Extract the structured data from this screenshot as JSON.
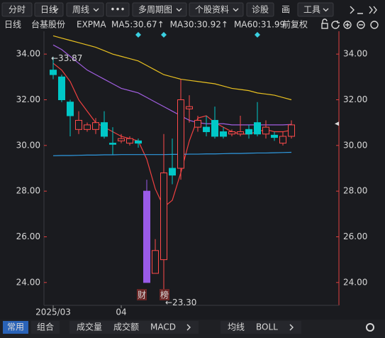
{
  "toolbar": {
    "buttons": [
      "分时",
      "日线",
      "周线",
      "•••",
      "多周期图",
      "个股资料",
      "诊股",
      "画",
      "工具"
    ]
  },
  "info_bar": {
    "period": "日线",
    "stock": "台基股份",
    "indicator": "EXPMA",
    "adjust": "前复权"
  },
  "bottom_bar": {
    "groups": [
      "常用",
      "组合"
    ],
    "indicators": [
      "成交量",
      "成交额",
      "MACD"
    ],
    "overlays": [
      "均线",
      "BOLL"
    ]
  },
  "chart_data": {
    "type": "candlestick",
    "categories": [
      "2025/03",
      null,
      null,
      null,
      null,
      null,
      null,
      null,
      "04",
      null,
      null,
      null,
      null,
      null,
      null,
      null,
      null,
      null,
      null,
      null,
      null,
      null,
      null,
      null,
      null,
      null,
      null,
      null,
      null
    ],
    "open": [
      33.3,
      33.0,
      31.9,
      30.7,
      30.7,
      30.7,
      31.0,
      30.1,
      30.2,
      30.1,
      30.2,
      28.0,
      24.4,
      25.0,
      29.0,
      29.0,
      31.6,
      30.8,
      30.8,
      31.1,
      30.6,
      30.5,
      30.5,
      30.7,
      31.0,
      30.5,
      30.45,
      30.1,
      30.4
    ],
    "high": [
      33.87,
      33.1,
      32.0,
      31.5,
      31.0,
      31.2,
      31.5,
      30.8,
      30.5,
      30.4,
      30.3,
      28.5,
      25.9,
      30.5,
      30.3,
      32.9,
      32.2,
      31.3,
      31.3,
      31.7,
      30.8,
      30.7,
      31.3,
      30.9,
      31.9,
      31.1,
      30.6,
      30.6,
      31.1
    ],
    "low": [
      32.9,
      31.9,
      30.4,
      30.5,
      30.6,
      30.5,
      30.3,
      29.6,
      30.1,
      30.0,
      29.9,
      24.0,
      24.4,
      23.3,
      28.3,
      28.5,
      31.0,
      30.6,
      30.4,
      30.3,
      30.3,
      30.4,
      30.4,
      30.3,
      30.4,
      30.3,
      30.2,
      30.0,
      30.3
    ],
    "close": [
      33.1,
      32.0,
      31.3,
      31.1,
      30.9,
      31.0,
      30.4,
      30.05,
      30.3,
      30.3,
      30.1,
      24.0,
      25.4,
      28.8,
      28.7,
      32.0,
      31.7,
      31.1,
      30.6,
      30.4,
      30.4,
      30.6,
      30.6,
      30.5,
      30.5,
      30.8,
      30.35,
      30.4,
      30.9
    ],
    "colors": [
      "#00c8c8",
      "#00c8c8",
      "#00c8c8",
      "#ff4b4b",
      "#ff4b4b",
      "#ff4b4b",
      "#00c8c8",
      "#00c8c8",
      "#ff4b4b",
      "#ff4b4b",
      "#00c8c8",
      "#9a5be8",
      "#ff4b4b",
      "#ff4b4b",
      "#00c8c8",
      "#ff4b4b",
      "#ff4b4b",
      "#ff4b4b",
      "#00c8c8",
      "#00c8c8",
      "#00c8c8",
      "#ff4b4b",
      "#ff4b4b",
      "#00c8c8",
      "#00c8c8",
      "#ff4b4b",
      "#00c8c8",
      "#ff4b4b",
      "#ff4b4b"
    ],
    "series": [
      {
        "name": "MA5:30.67↑",
        "color": "#f04040",
        "values": [
          33.6,
          33.3,
          32.8,
          32.0,
          31.5,
          31.0,
          30.8,
          30.6,
          30.4,
          30.3,
          30.2,
          29.4,
          28.1,
          27.3,
          27.6,
          28.8,
          30.2,
          31.2,
          31.3,
          31.0,
          30.8,
          30.6,
          30.5,
          30.5,
          30.6,
          30.7,
          30.6,
          30.6,
          30.67
        ]
      },
      {
        "name": "MA30:30.92↑",
        "color": "#a15ee0",
        "values": [
          34.4,
          34.2,
          33.9,
          33.6,
          33.3,
          33.1,
          32.9,
          32.7,
          32.5,
          32.4,
          32.3,
          32.1,
          31.9,
          31.7,
          31.5,
          31.3,
          31.1,
          31.0,
          30.95,
          30.95,
          30.95,
          30.9,
          30.9,
          30.9,
          30.9,
          30.9,
          30.9,
          30.9,
          30.92
        ]
      },
      {
        "name": "MA60:31.99",
        "color": "#e8c020",
        "values": [
          34.8,
          34.7,
          34.6,
          34.5,
          34.4,
          34.3,
          34.15,
          34.0,
          33.9,
          33.8,
          33.7,
          33.5,
          33.3,
          33.1,
          33.0,
          32.9,
          32.85,
          32.8,
          32.75,
          32.7,
          32.6,
          32.5,
          32.45,
          32.4,
          32.3,
          32.25,
          32.2,
          32.1,
          32.0
        ]
      },
      {
        "color": "#2f9ae0",
        "values": [
          29.55,
          29.56,
          29.56,
          29.57,
          29.58,
          29.58,
          29.59,
          29.59,
          29.6,
          29.6,
          29.6,
          29.6,
          29.6,
          29.6,
          29.61,
          29.61,
          29.62,
          29.62,
          29.63,
          29.63,
          29.64,
          29.65,
          29.65,
          29.66,
          29.67,
          29.67,
          29.68,
          29.69,
          29.7
        ]
      }
    ],
    "annotations": [
      "←33.87",
      "←23.30"
    ],
    "events": [
      "财",
      "榜"
    ],
    "ylim": [
      23.0,
      35.0
    ],
    "yticks": [
      {
        "value": 24,
        "label": "24.00"
      },
      {
        "value": 26,
        "label": "26.00"
      },
      {
        "value": 28,
        "label": "28.00"
      },
      {
        "value": 30,
        "label": "30.00"
      },
      {
        "value": 32,
        "label": "32.00"
      },
      {
        "value": 34,
        "label": "34.00"
      }
    ],
    "axis_color": "#e04040"
  }
}
